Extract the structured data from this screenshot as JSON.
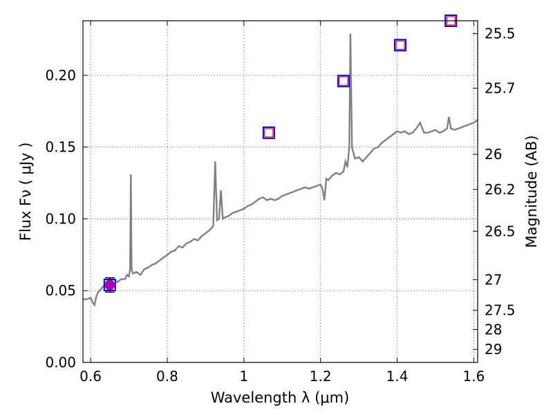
{
  "chart_data": {
    "type": "scatter",
    "xlabel": "Wavelength  λ (μm)",
    "ylabel": "Flux  Fν  ( μJy )",
    "ylabel_right": "Magnitude (AB)",
    "xlim": [
      0.58,
      1.61
    ],
    "ylim": [
      0.0,
      0.238
    ],
    "grid": true,
    "x_ticks": [
      0.6,
      0.8,
      1.0,
      1.2,
      1.4,
      1.6
    ],
    "x_tick_labels": [
      "0.6",
      "0.8",
      "1",
      "1.2",
      "1.4",
      "1.6"
    ],
    "y_ticks": [
      0.0,
      0.05,
      0.1,
      0.15,
      0.2
    ],
    "y_tick_labels": [
      "0.00",
      "0.05",
      "0.10",
      "0.15",
      "0.20"
    ],
    "right_ticks": [
      {
        "label": "25.5",
        "flux": 0.229
      },
      {
        "label": "25.7",
        "flux": 0.191
      },
      {
        "label": "26",
        "flux": 0.145
      },
      {
        "label": "26.2",
        "flux": 0.1205
      },
      {
        "label": "26.5",
        "flux": 0.0914
      },
      {
        "label": "27",
        "flux": 0.0576
      },
      {
        "label": "27.5",
        "flux": 0.0363
      },
      {
        "label": "28",
        "flux": 0.0229
      },
      {
        "label": "29",
        "flux": 0.0091
      }
    ],
    "series": [
      {
        "kind": "line",
        "color": "#808080",
        "points": [
          [
            0.58,
            0.044
          ],
          [
            0.59,
            0.044
          ],
          [
            0.6,
            0.045
          ],
          [
            0.605,
            0.042
          ],
          [
            0.61,
            0.04
          ],
          [
            0.615,
            0.046
          ],
          [
            0.62,
            0.049
          ],
          [
            0.63,
            0.052
          ],
          [
            0.64,
            0.055
          ],
          [
            0.65,
            0.057
          ],
          [
            0.66,
            0.058
          ],
          [
            0.67,
            0.056
          ],
          [
            0.68,
            0.058
          ],
          [
            0.69,
            0.058
          ],
          [
            0.695,
            0.061
          ],
          [
            0.7,
            0.06
          ],
          [
            0.703,
            0.065
          ],
          [
            0.705,
            0.131
          ],
          [
            0.707,
            0.065
          ],
          [
            0.71,
            0.062
          ],
          [
            0.72,
            0.063
          ],
          [
            0.73,
            0.061
          ],
          [
            0.74,
            0.065
          ],
          [
            0.75,
            0.066
          ],
          [
            0.76,
            0.068
          ],
          [
            0.77,
            0.069
          ],
          [
            0.78,
            0.071
          ],
          [
            0.79,
            0.073
          ],
          [
            0.8,
            0.075
          ],
          [
            0.81,
            0.077
          ],
          [
            0.82,
            0.078
          ],
          [
            0.83,
            0.081
          ],
          [
            0.84,
            0.08
          ],
          [
            0.85,
            0.083
          ],
          [
            0.86,
            0.084
          ],
          [
            0.87,
            0.086
          ],
          [
            0.88,
            0.085
          ],
          [
            0.89,
            0.088
          ],
          [
            0.9,
            0.09
          ],
          [
            0.91,
            0.092
          ],
          [
            0.92,
            0.095
          ],
          [
            0.925,
            0.14
          ],
          [
            0.93,
            0.099
          ],
          [
            0.935,
            0.1
          ],
          [
            0.94,
            0.12
          ],
          [
            0.945,
            0.1
          ],
          [
            0.95,
            0.101
          ],
          [
            0.96,
            0.102
          ],
          [
            0.97,
            0.104
          ],
          [
            0.98,
            0.105
          ],
          [
            0.99,
            0.106
          ],
          [
            1.0,
            0.107
          ],
          [
            1.01,
            0.109
          ],
          [
            1.02,
            0.11
          ],
          [
            1.03,
            0.112
          ],
          [
            1.04,
            0.114
          ],
          [
            1.05,
            0.115
          ],
          [
            1.06,
            0.113
          ],
          [
            1.07,
            0.114
          ],
          [
            1.08,
            0.113
          ],
          [
            1.09,
            0.114
          ],
          [
            1.1,
            0.116
          ],
          [
            1.11,
            0.117
          ],
          [
            1.12,
            0.118
          ],
          [
            1.13,
            0.119
          ],
          [
            1.14,
            0.12
          ],
          [
            1.15,
            0.121
          ],
          [
            1.16,
            0.122
          ],
          [
            1.17,
            0.121
          ],
          [
            1.18,
            0.122
          ],
          [
            1.19,
            0.123
          ],
          [
            1.2,
            0.124
          ],
          [
            1.205,
            0.121
          ],
          [
            1.21,
            0.113
          ],
          [
            1.215,
            0.128
          ],
          [
            1.22,
            0.127
          ],
          [
            1.23,
            0.13
          ],
          [
            1.24,
            0.132
          ],
          [
            1.25,
            0.131
          ],
          [
            1.26,
            0.133
          ],
          [
            1.265,
            0.14
          ],
          [
            1.27,
            0.136
          ],
          [
            1.275,
            0.15
          ],
          [
            1.278,
            0.229
          ],
          [
            1.282,
            0.15
          ],
          [
            1.29,
            0.142
          ],
          [
            1.3,
            0.143
          ],
          [
            1.31,
            0.14
          ],
          [
            1.32,
            0.143
          ],
          [
            1.33,
            0.146
          ],
          [
            1.34,
            0.149
          ],
          [
            1.35,
            0.15
          ],
          [
            1.36,
            0.153
          ],
          [
            1.37,
            0.155
          ],
          [
            1.38,
            0.157
          ],
          [
            1.39,
            0.159
          ],
          [
            1.4,
            0.161
          ],
          [
            1.41,
            0.16
          ],
          [
            1.42,
            0.161
          ],
          [
            1.43,
            0.159
          ],
          [
            1.44,
            0.16
          ],
          [
            1.45,
            0.163
          ],
          [
            1.46,
            0.167
          ],
          [
            1.47,
            0.16
          ],
          [
            1.48,
            0.16
          ],
          [
            1.49,
            0.161
          ],
          [
            1.5,
            0.162
          ],
          [
            1.51,
            0.16
          ],
          [
            1.52,
            0.161
          ],
          [
            1.53,
            0.163
          ],
          [
            1.535,
            0.171
          ],
          [
            1.54,
            0.163
          ],
          [
            1.55,
            0.162
          ],
          [
            1.56,
            0.163
          ],
          [
            1.57,
            0.164
          ],
          [
            1.58,
            0.165
          ],
          [
            1.59,
            0.166
          ],
          [
            1.6,
            0.167
          ],
          [
            1.61,
            0.169
          ]
        ]
      },
      {
        "kind": "markers-square-blue",
        "color": "#0000ff",
        "points": [
          [
            0.65,
            0.054
          ],
          [
            1.065,
            0.16
          ],
          [
            1.26,
            0.196
          ],
          [
            1.408,
            0.221
          ],
          [
            1.54,
            0.238
          ]
        ]
      },
      {
        "kind": "markers-square-red",
        "color": "#ff0000",
        "points": [
          [
            1.065,
            0.16
          ],
          [
            1.26,
            0.196
          ],
          [
            1.408,
            0.221
          ],
          [
            1.54,
            0.238
          ]
        ]
      },
      {
        "kind": "observed-point",
        "color": "#aa00aa",
        "points": [
          [
            0.65,
            0.054
          ]
        ],
        "error": 0.005
      }
    ]
  }
}
